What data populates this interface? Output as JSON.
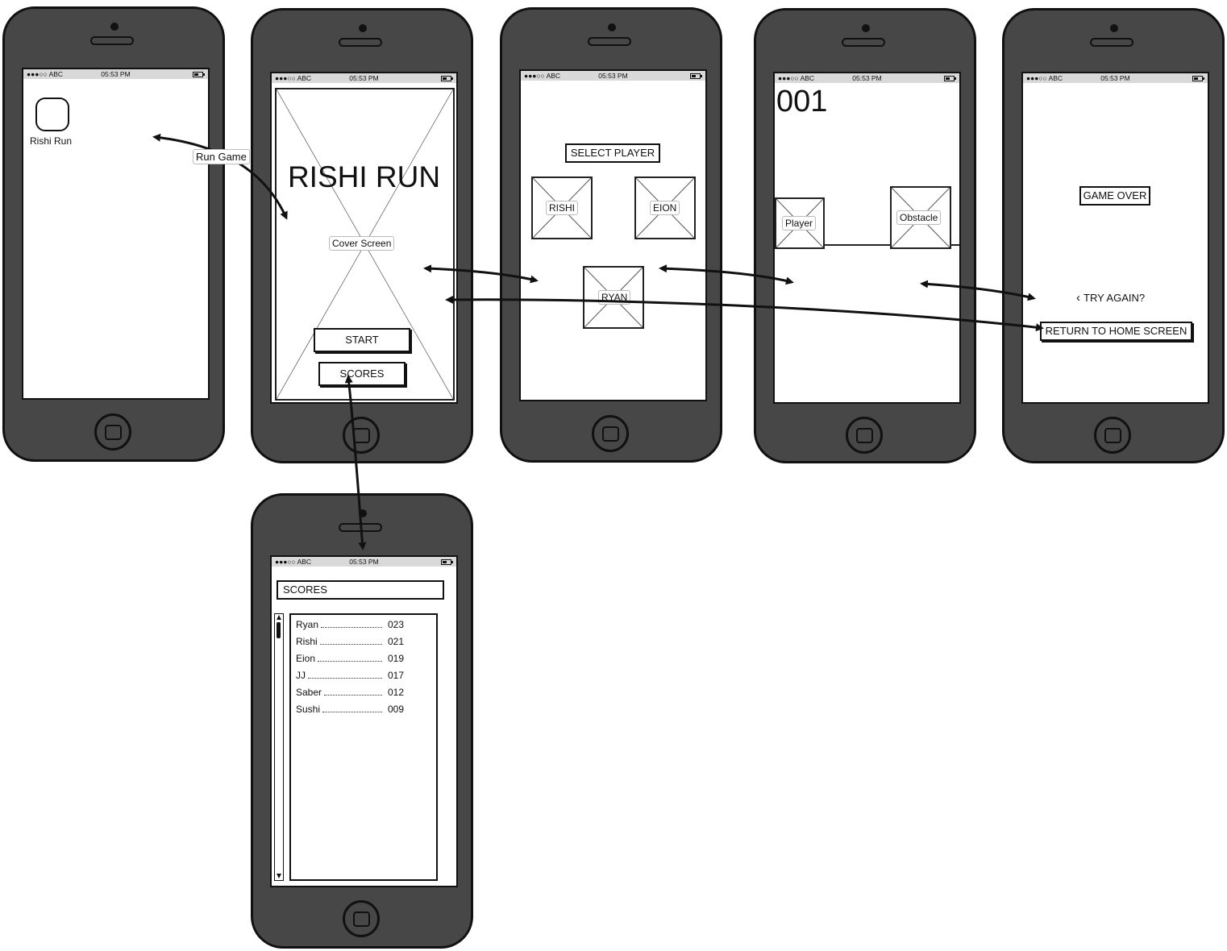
{
  "status_bar": {
    "carrier": "●●●○○ ABC",
    "time": "05:53 PM"
  },
  "home": {
    "app_label": "Rishi Run",
    "annotation": "Run Game"
  },
  "cover": {
    "title": "RISHI RUN",
    "placeholder_label": "Cover Screen",
    "start_label": "START",
    "scores_label": "SCORES"
  },
  "select": {
    "title": "SELECT PLAYER",
    "players": [
      "RISHI",
      "EION",
      "RYAN"
    ]
  },
  "game": {
    "score": "001",
    "player_label": "Player",
    "obstacle_label": "Obstacle"
  },
  "over": {
    "title": "GAME OVER",
    "try_again_icon": "chevron-left-icon",
    "try_again_label": "TRY AGAIN?",
    "return_label": "RETURN TO HOME SCREEN"
  },
  "scores": {
    "title": "SCORES",
    "rows": [
      {
        "name": "Ryan",
        "score": "023"
      },
      {
        "name": "Rishi",
        "score": "021"
      },
      {
        "name": "Eion",
        "score": "019"
      },
      {
        "name": "JJ",
        "score": "017"
      },
      {
        "name": "Saber",
        "score": "012"
      },
      {
        "name": "Sushi",
        "score": "009"
      }
    ]
  }
}
